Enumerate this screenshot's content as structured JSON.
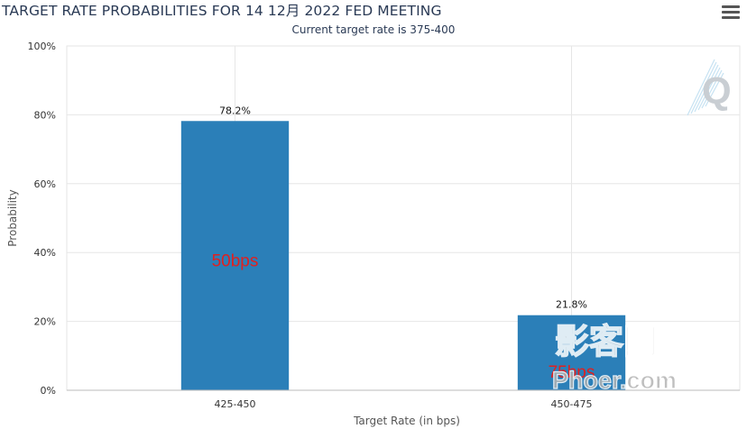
{
  "header": {
    "menu_icon": "hamburger-menu-icon"
  },
  "chart_data": {
    "type": "bar",
    "title": "TARGET RATE PROBABILITIES FOR 14 12月 2022 FED MEETING",
    "subtitle": "Current target rate is 375-400",
    "xlabel": "Target Rate (in bps)",
    "ylabel": "Probability",
    "categories": [
      "425-450",
      "450-475"
    ],
    "values": [
      78.2,
      21.8
    ],
    "data_labels": [
      "78.2%",
      "21.8%"
    ],
    "bar_annotations": [
      "50bps",
      "75bps"
    ],
    "ylim": [
      0,
      100
    ],
    "yticks": [
      "0%",
      "20%",
      "40%",
      "60%",
      "80%",
      "100%"
    ],
    "grid": true,
    "bar_color": "#2b7fb8",
    "annotation_color": "#e02020"
  },
  "watermark": {
    "logo_letter": "Q",
    "line1": "影客网",
    "line2": "Phoer.com"
  }
}
